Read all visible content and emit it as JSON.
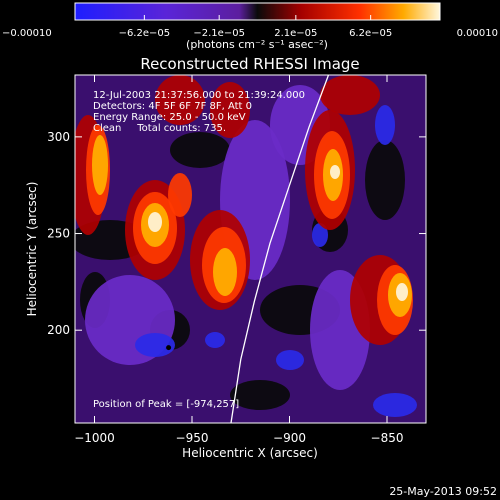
{
  "chart_data": {
    "type": "heatmap",
    "title": "Reconstructed RHESSI Image",
    "xlabel": "Heliocentric X (arcsec)",
    "ylabel": "Heliocentric Y (arcsec)",
    "xlim": [
      -1010,
      -830
    ],
    "ylim": [
      152,
      332
    ],
    "xticks": [
      -1000,
      -950,
      -900,
      -850
    ],
    "xtick_labels": [
      "−1000",
      "−950",
      "−900",
      "−850"
    ],
    "yticks": [
      200,
      250,
      300
    ],
    "ytick_labels": [
      "200",
      "250",
      "300"
    ],
    "colorbar": {
      "label": "(photons cm⁻² s⁻¹ asec⁻²)",
      "min": -0.0001,
      "max": 0.0001,
      "ticks": [
        -0.0001,
        -6.2e-05,
        -2.1e-05,
        2.1e-05,
        6.2e-05,
        0.0001
      ],
      "tick_labels": [
        "−0.00010",
        "−6.2e−05",
        "−2.1e−05",
        "2.1e−05",
        "6.2e−05",
        "0.00010"
      ]
    },
    "annotations": {
      "time_range": "12-Jul-2003 21:37:56.000 to 21:39:24.000",
      "detectors": "Detectors: 4F 5F 6F 7F 8F, Att 0",
      "energy_range": "Energy Range: 25.0 - 50.0 keV",
      "clean": "Clean     Total counts: 735.",
      "peak": "Position of Peak = [-974,257]"
    },
    "limb_curve": [
      [
        -930,
        152
      ],
      [
        -925,
        185
      ],
      [
        -918,
        215
      ],
      [
        -910,
        245
      ],
      [
        -900,
        275
      ],
      [
        -890,
        305
      ],
      [
        -880,
        332
      ]
    ],
    "peak_position": [
      -974,
      257
    ],
    "grid": false,
    "legend": "none"
  },
  "footer": {
    "date": "25-May-2013 09:52"
  }
}
